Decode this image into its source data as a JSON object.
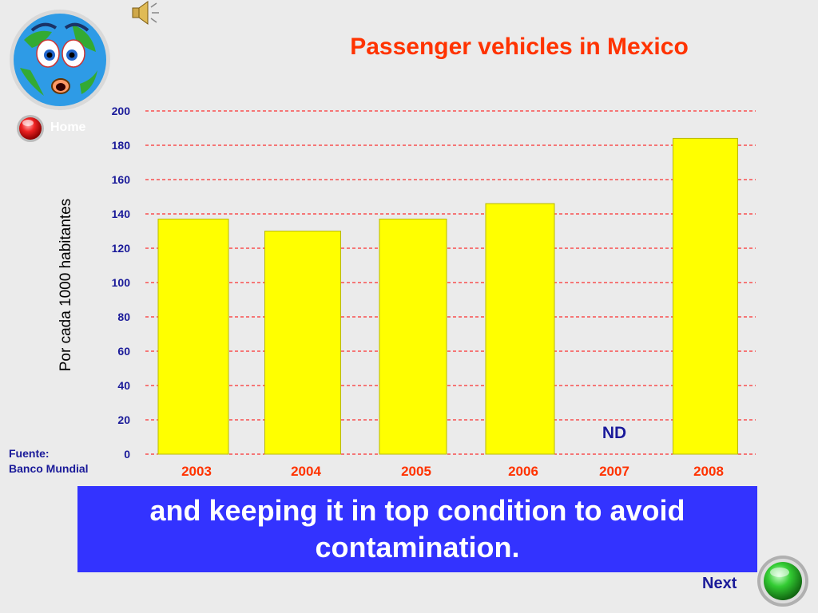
{
  "header": {
    "home_label": "Home",
    "speaker_icon": "speaker-icon",
    "mascot_icon": "earth-mascot-icon"
  },
  "source": {
    "line1": "Fuente:",
    "line2": "Banco Mundial"
  },
  "caption": "and keeping it in top condition to avoid contamination.",
  "nav": {
    "next_label": "Next"
  },
  "colors": {
    "title": "#ff3300",
    "bar_fill": "#ffff00",
    "bar_stroke": "#b8b800",
    "grid": "#ff0000",
    "tick_label": "#1a1a99",
    "category_label": "#ff3300",
    "caption_bg": "#3333ff",
    "nd_label": "#1a1a99"
  },
  "chart_data": {
    "type": "bar",
    "title": "Passenger vehicles in Mexico",
    "ylabel": "Por cada 1000 habitantes",
    "xlabel": "",
    "categories": [
      "2003",
      "2004",
      "2005",
      "2006",
      "2007",
      "2008"
    ],
    "values": [
      137,
      130,
      137,
      146,
      null,
      184
    ],
    "annotations": [
      {
        "category": "2007",
        "text": "ND"
      }
    ],
    "ylim": [
      0,
      200
    ],
    "yticks": [
      0,
      20,
      40,
      60,
      80,
      100,
      120,
      140,
      160,
      180,
      200
    ],
    "grid": true,
    "grid_style": "dashed"
  }
}
